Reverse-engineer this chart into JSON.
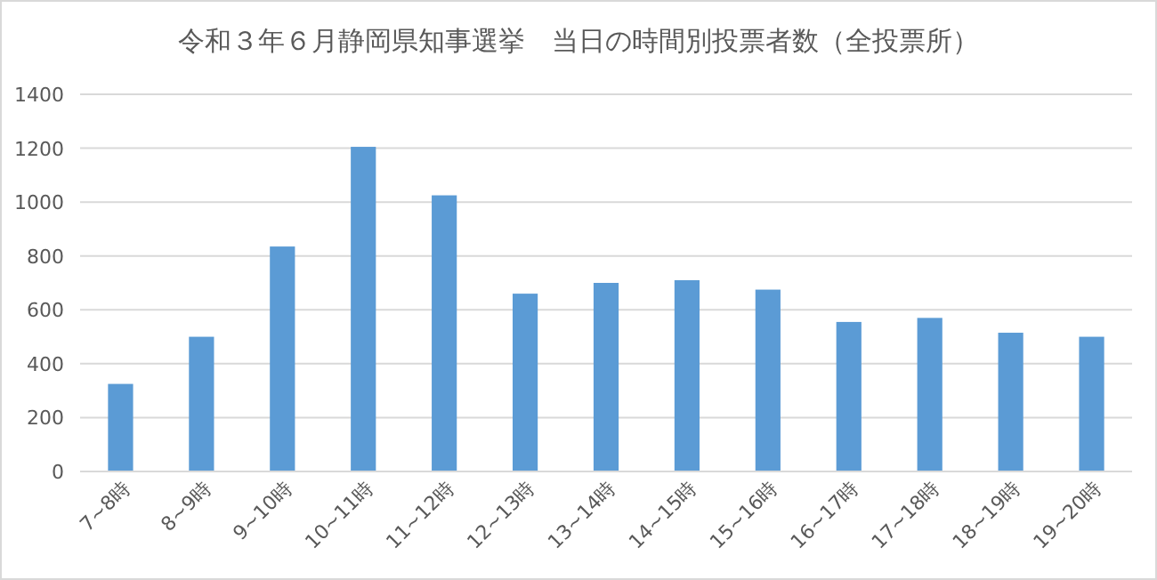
{
  "chart_data": {
    "type": "bar",
    "title": "令和３年６月静岡県知事選挙　当日の時間別投票者数（全投票所）",
    "categories": [
      "7~8時",
      "8~9時",
      "9~10時",
      "10~11時",
      "11~12時",
      "12~13時",
      "13~14時",
      "14~15時",
      "15~16時",
      "16~17時",
      "17~18時",
      "18~19時",
      "19~20時"
    ],
    "values": [
      325,
      500,
      835,
      1205,
      1025,
      660,
      700,
      710,
      675,
      555,
      570,
      515,
      500
    ],
    "color": "#5b9bd5",
    "ylim": [
      0,
      1400
    ],
    "yticks": [
      0,
      200,
      400,
      600,
      800,
      1000,
      1200,
      1400
    ],
    "grid": "y"
  }
}
